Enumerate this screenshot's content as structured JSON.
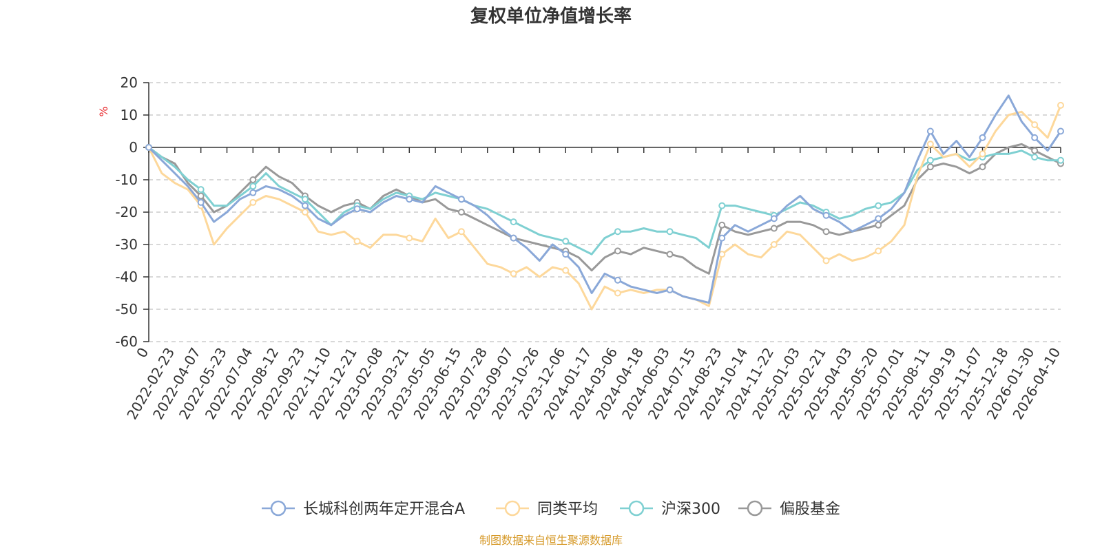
{
  "chart_data": {
    "type": "line",
    "title": "复权单位净值增长率",
    "ylabel": "%",
    "xlabel": "",
    "ylim": [
      -60,
      20
    ],
    "yticks": [
      20,
      10,
      0,
      -10,
      -20,
      -30,
      -40,
      -50,
      -60
    ],
    "x_tick_labels": [
      "0",
      "2022-02-23",
      "2022-04-07",
      "2022-05-23",
      "2022-07-04",
      "2022-08-12",
      "2022-09-23",
      "2022-11-10",
      "2022-12-21",
      "2023-02-08",
      "2023-03-21",
      "2023-05-05",
      "2023-06-15",
      "2023-07-28",
      "2023-09-07",
      "2023-10-26",
      "2023-12-06",
      "2024-01-17",
      "2024-03-06",
      "2024-04-18",
      "2024-06-03",
      "2024-07-15",
      "2024-08-23",
      "2024-10-14",
      "2024-11-22",
      "2025-01-03",
      "2025-02-21",
      "2025-04-03",
      "2025-05-20",
      "2025-07-01",
      "2025-08-11",
      "2025-09-19",
      "2025-11-07",
      "2025-12-18",
      "2026-01-30",
      "2026-04-10"
    ],
    "x": [
      0,
      0.5,
      1,
      1.5,
      2,
      2.5,
      3,
      3.5,
      4,
      4.5,
      5,
      5.5,
      6,
      6.5,
      7,
      7.5,
      8,
      8.5,
      9,
      9.5,
      10,
      10.5,
      11,
      11.5,
      12,
      12.5,
      13,
      13.5,
      14,
      14.5,
      15,
      15.5,
      16,
      16.5,
      17,
      17.5,
      18,
      18.5,
      19,
      19.5,
      20,
      20.5,
      21,
      21.5,
      22,
      22.5,
      23,
      23.5,
      24,
      24.5,
      25,
      25.5,
      26,
      26.5,
      27,
      27.5,
      28,
      28.5,
      29,
      29.5,
      30,
      30.5,
      31,
      31.5,
      32,
      32.5,
      33,
      33.5,
      34,
      34.5,
      35
    ],
    "series": [
      {
        "name": "长城科创两年定开混合A",
        "color": "#8aa8d8",
        "values": [
          0,
          -4,
          -8,
          -12,
          -17,
          -23,
          -20,
          -16,
          -14,
          -12,
          -13,
          -15,
          -18,
          -22,
          -24,
          -21,
          -19,
          -20,
          -17,
          -15,
          -16,
          -17,
          -12,
          -14,
          -16,
          -18,
          -21,
          -25,
          -28,
          -31,
          -35,
          -30,
          -33,
          -37,
          -45,
          -39,
          -41,
          -43,
          -44,
          -45,
          -44,
          -46,
          -47,
          -48,
          -28,
          -24,
          -26,
          -24,
          -22,
          -18,
          -15,
          -19,
          -21,
          -23,
          -26,
          -24,
          -22,
          -19,
          -14,
          -4,
          5,
          -2,
          2,
          -3,
          3,
          10,
          16,
          8,
          3,
          -1,
          5
        ]
      },
      {
        "name": "同类平均",
        "color": "#fdd89b",
        "values": [
          0,
          -8,
          -11,
          -13,
          -18,
          -30,
          -25,
          -21,
          -17,
          -15,
          -16,
          -18,
          -20,
          -26,
          -27,
          -26,
          -29,
          -31,
          -27,
          -27,
          -28,
          -29,
          -22,
          -28,
          -26,
          -31,
          -36,
          -37,
          -39,
          -37,
          -40,
          -37,
          -38,
          -42,
          -50,
          -43,
          -45,
          -44,
          -45,
          -44,
          -44,
          -46,
          -47,
          -49,
          -33,
          -30,
          -33,
          -34,
          -30,
          -26,
          -27,
          -31,
          -35,
          -33,
          -35,
          -34,
          -32,
          -29,
          -24,
          -9,
          1,
          -3,
          -2,
          -6,
          -2,
          5,
          10,
          11,
          7,
          3,
          13
        ]
      },
      {
        "name": "沪深300",
        "color": "#7fd0d2",
        "values": [
          0,
          -3,
          -6,
          -10,
          -13,
          -18,
          -18,
          -15,
          -12,
          -8,
          -12,
          -14,
          -16,
          -20,
          -24,
          -20,
          -18,
          -19,
          -16,
          -14,
          -15,
          -16,
          -14,
          -15,
          -16,
          -18,
          -19,
          -21,
          -23,
          -25,
          -27,
          -28,
          -29,
          -31,
          -33,
          -28,
          -26,
          -26,
          -25,
          -26,
          -26,
          -27,
          -28,
          -31,
          -18,
          -18,
          -19,
          -20,
          -21,
          -19,
          -17,
          -18,
          -20,
          -22,
          -21,
          -19,
          -18,
          -17,
          -14,
          -7,
          -4,
          -3,
          -2,
          -4,
          -3,
          -2,
          -2,
          -1,
          -3,
          -4,
          -4
        ]
      },
      {
        "name": "偏股基金",
        "color": "#999999",
        "values": [
          0,
          -3,
          -5,
          -11,
          -15,
          -20,
          -18,
          -14,
          -10,
          -6,
          -9,
          -11,
          -15,
          -18,
          -20,
          -18,
          -17,
          -19,
          -15,
          -13,
          -15,
          -17,
          -16,
          -19,
          -20,
          -22,
          -24,
          -26,
          -28,
          -29,
          -30,
          -31,
          -32,
          -34,
          -38,
          -34,
          -32,
          -33,
          -31,
          -32,
          -33,
          -34,
          -37,
          -39,
          -24,
          -26,
          -27,
          -26,
          -25,
          -23,
          -23,
          -24,
          -26,
          -27,
          -26,
          -25,
          -24,
          -21,
          -18,
          -10,
          -6,
          -5,
          -6,
          -8,
          -6,
          -2,
          0,
          1,
          -1,
          -3,
          -5
        ]
      }
    ],
    "legend_position": "bottom",
    "grid": true
  },
  "source_note": "制图数据来自恒生聚源数据库"
}
